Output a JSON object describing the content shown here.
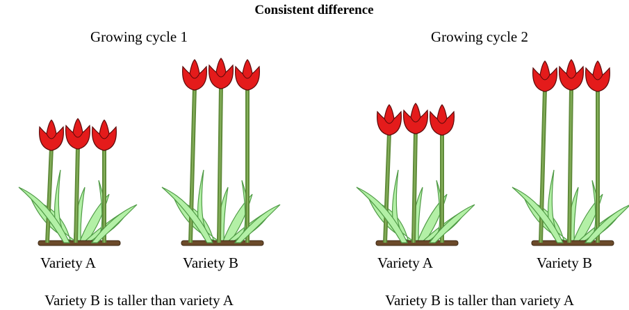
{
  "title": "Consistent difference",
  "panels": [
    {
      "heading": "Growing cycle 1",
      "groups": [
        {
          "label": "Variety A"
        },
        {
          "label": "Variety B"
        }
      ],
      "caption": "Variety B is taller than variety A"
    },
    {
      "heading": "Growing cycle 2",
      "groups": [
        {
          "label": "Variety A"
        },
        {
          "label": "Variety B"
        }
      ],
      "caption": "Variety B is taller than variety A"
    }
  ]
}
